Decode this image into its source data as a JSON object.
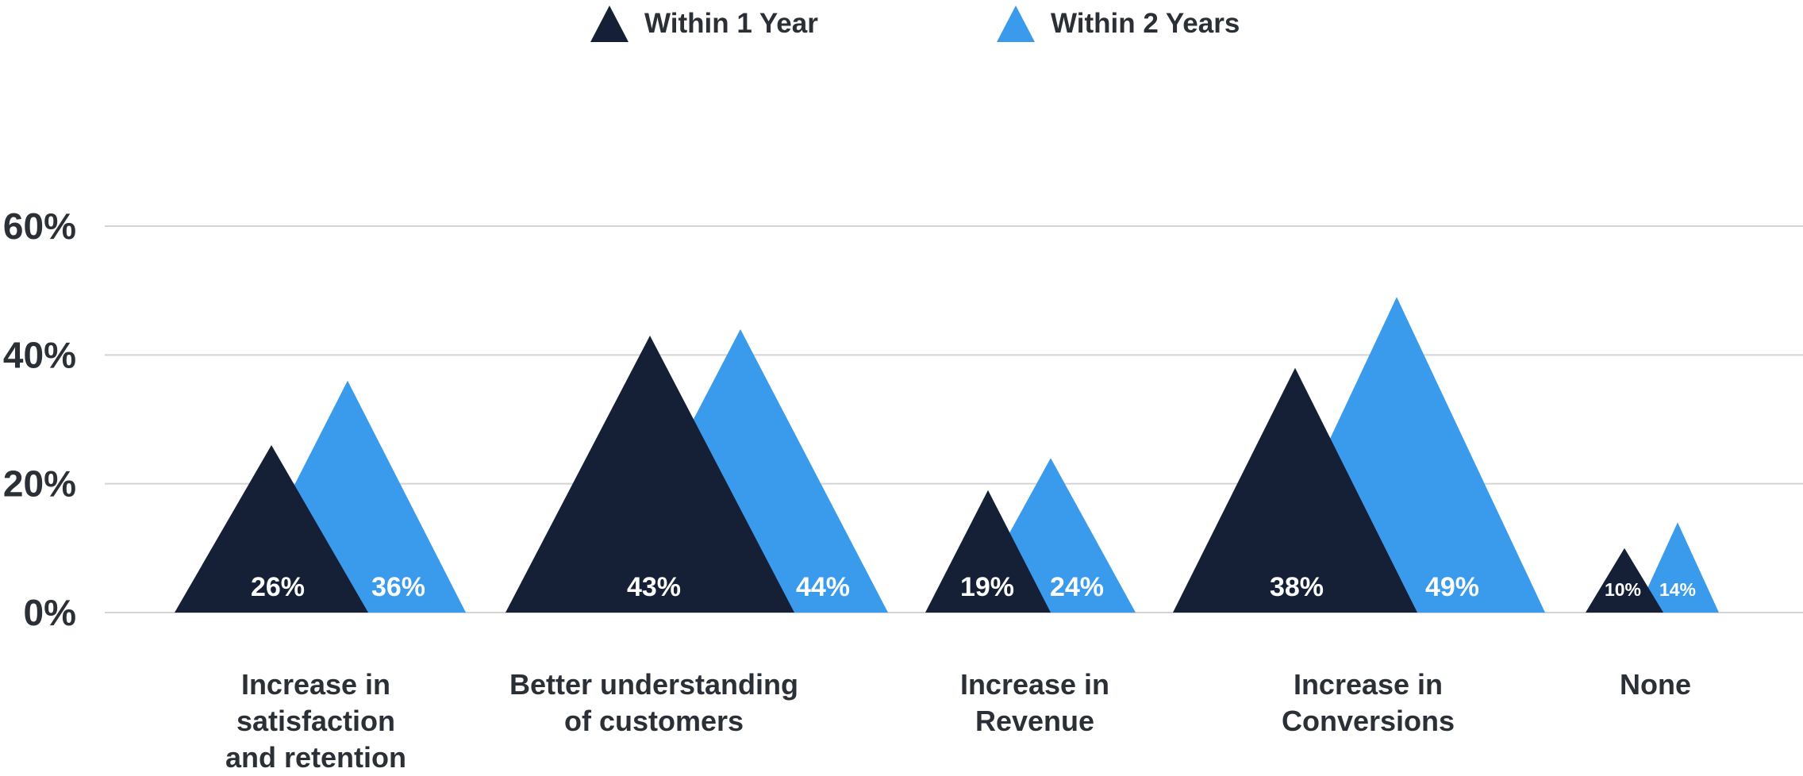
{
  "chart_data": {
    "type": "bar",
    "categories": [
      "Increase in\nsatisfaction\nand retention",
      "Better understanding\nof customers",
      "Increase in\nRevenue",
      "Increase in\nConversions",
      "None"
    ],
    "series": [
      {
        "name": "Within 1 Year",
        "values": [
          26,
          43,
          19,
          38,
          10
        ],
        "color": "#152037",
        "labels": [
          "26%",
          "43%",
          "19%",
          "38%",
          "10%"
        ]
      },
      {
        "name": "Within 2 Years",
        "values": [
          36,
          44,
          24,
          49,
          14
        ],
        "color": "#3a9bec",
        "labels": [
          "36%",
          "44%",
          "24%",
          "49%",
          "14%"
        ]
      }
    ],
    "title": "",
    "xlabel": "",
    "ylabel": "",
    "ylim": [
      0,
      60
    ],
    "yticks": [
      "0%",
      "20%",
      "40%",
      "60%"
    ],
    "grid": true,
    "legend_position": "top-center",
    "mark_shape": "triangle"
  }
}
